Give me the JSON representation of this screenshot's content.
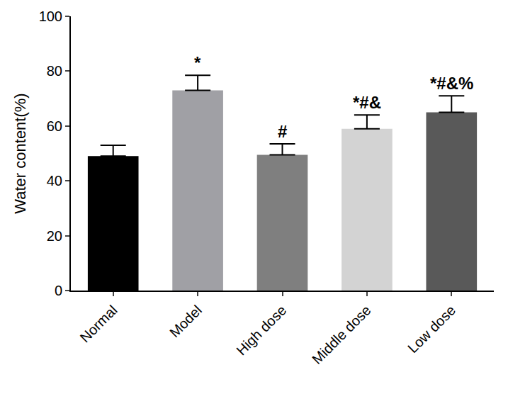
{
  "chart_data": {
    "type": "bar",
    "y_label": "Water content(%)",
    "categories": [
      "Normal",
      "Model",
      "High dose",
      "Middle dose",
      "Low dose"
    ],
    "values": [
      49,
      73,
      49.5,
      59,
      65
    ],
    "errors": [
      4,
      5.5,
      4,
      5,
      6
    ],
    "colors": [
      "#000000",
      "#a0a0a5",
      "#7f7f7f",
      "#d3d3d3",
      "#595959"
    ],
    "annotations": [
      {
        "category": "Model",
        "text": "*"
      },
      {
        "category": "High dose",
        "text": "#"
      },
      {
        "category": "Middle dose",
        "text": "*#&"
      },
      {
        "category": "Low dose",
        "text": "*#&%"
      }
    ],
    "ylim": [
      0,
      100
    ],
    "yticks": [
      0,
      20,
      40,
      60,
      80,
      100
    ],
    "grid": false
  }
}
